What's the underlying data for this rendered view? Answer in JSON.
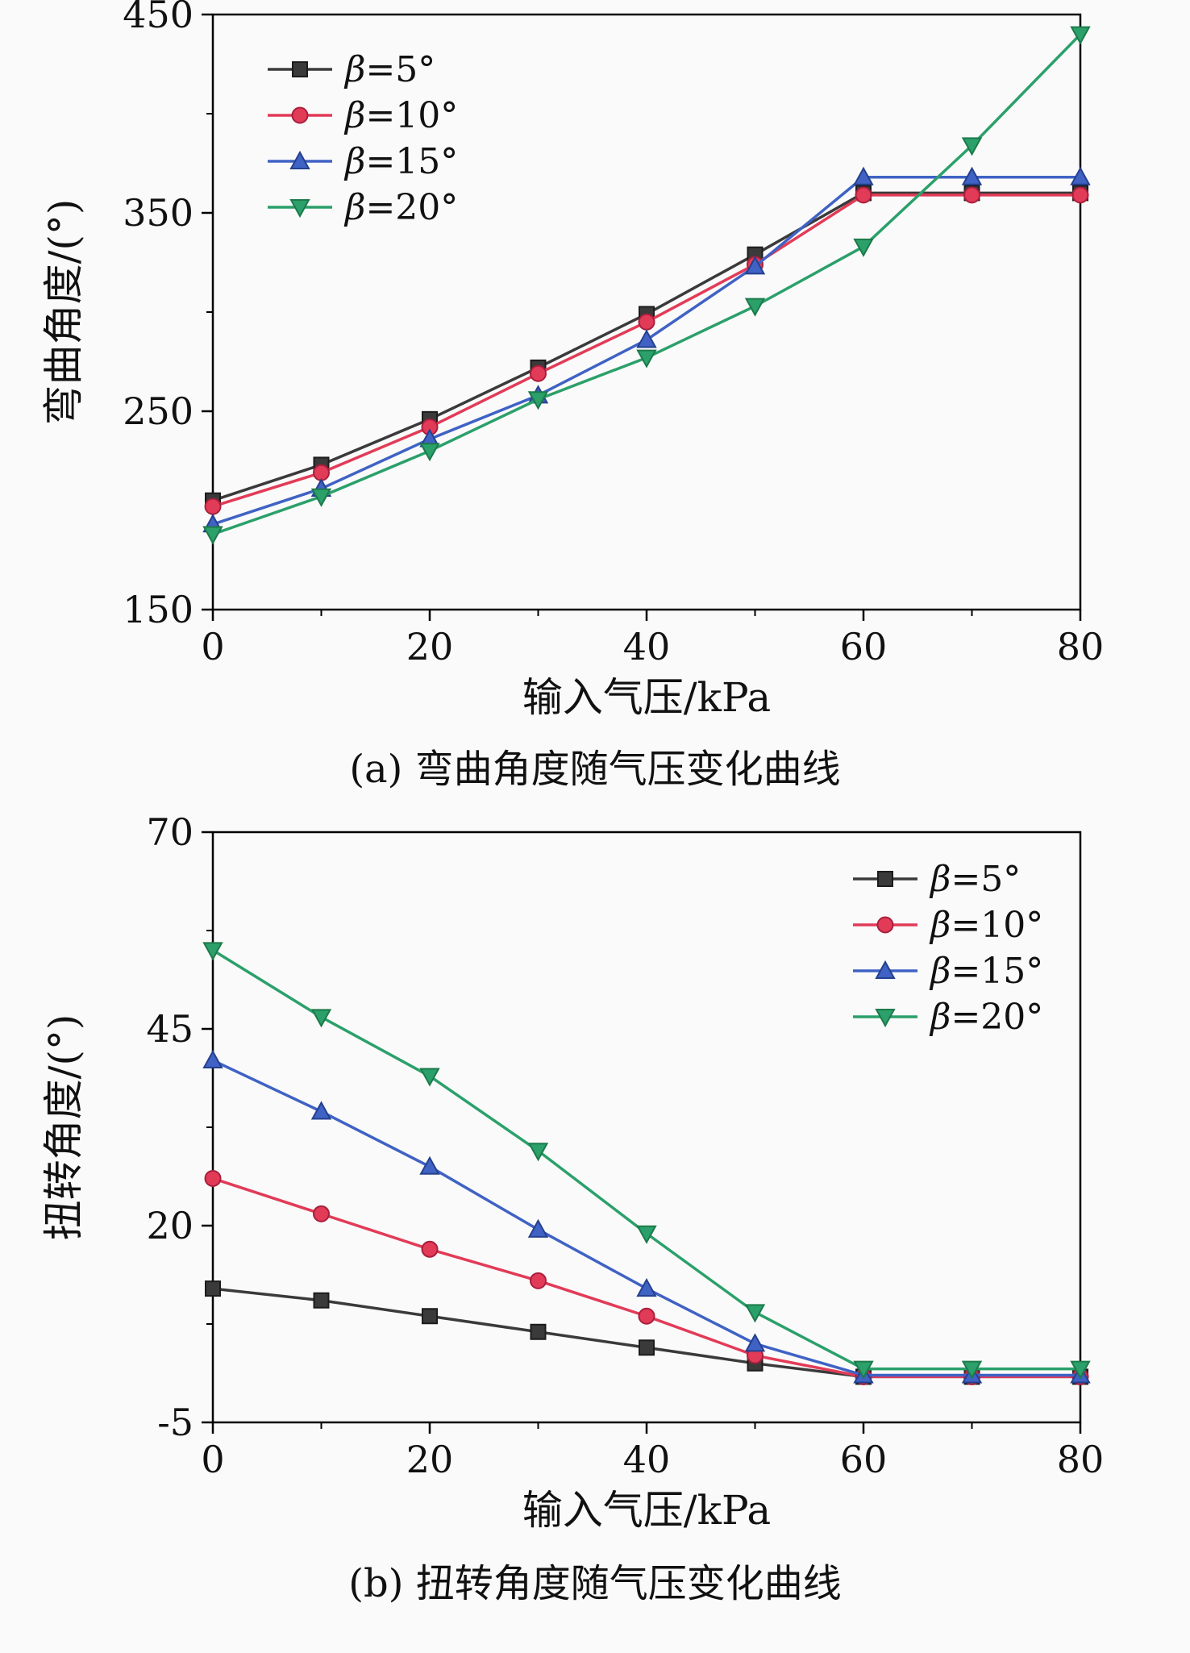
{
  "colors": {
    "frame": "#000000",
    "background": "#fafafa",
    "text": "#111111"
  },
  "chart_data": [
    {
      "type": "line",
      "caption": "(a) 弯曲角度随气压变化曲线",
      "xlabel": "输入气压/kPa",
      "ylabel": "弯曲角度/(°)",
      "xlim": [
        0,
        80
      ],
      "ylim": [
        150,
        450
      ],
      "x_ticks": [
        0,
        20,
        40,
        60,
        80
      ],
      "x_minor_ticks": [
        10,
        30,
        50,
        70
      ],
      "y_ticks": [
        150,
        250,
        350,
        450
      ],
      "y_minor_ticks": [
        200,
        300,
        400
      ],
      "legend_position": "top-left",
      "x": [
        0,
        10,
        20,
        30,
        40,
        50,
        60,
        70,
        80
      ],
      "series": [
        {
          "name": "β=5°",
          "beta": "β",
          "rest": "=5°",
          "color": "#3a3a3a",
          "edge": "#1c1c1c",
          "marker": "square",
          "values": [
            205,
            223,
            246,
            272,
            299,
            329,
            360,
            360,
            360
          ]
        },
        {
          "name": "β=10°",
          "beta": "β",
          "rest": "=10°",
          "color": "#e23b57",
          "edge": "#a81f3d",
          "marker": "circle",
          "values": [
            202,
            219,
            242,
            269,
            295,
            324,
            359,
            359,
            359
          ]
        },
        {
          "name": "β=15°",
          "beta": "β",
          "rest": "=15°",
          "color": "#3f62c4",
          "edge": "#24408e",
          "marker": "triangle-up",
          "values": [
            193,
            211,
            236,
            258,
            286,
            323,
            368,
            368,
            368
          ]
        },
        {
          "name": "β=20°",
          "beta": "β",
          "rest": "=20°",
          "color": "#2ba06a",
          "edge": "#1c7a4a",
          "marker": "triangle-down",
          "values": [
            188,
            207,
            230,
            256,
            277,
            303,
            333,
            384,
            440
          ]
        }
      ]
    },
    {
      "type": "line",
      "caption": "(b) 扭转角度随气压变化曲线",
      "xlabel": "输入气压/kPa",
      "ylabel": "扭转角度/(°)",
      "xlim": [
        0,
        80
      ],
      "ylim": [
        -5,
        70
      ],
      "x_ticks": [
        0,
        20,
        40,
        60,
        80
      ],
      "x_minor_ticks": [
        10,
        30,
        50,
        70
      ],
      "y_ticks": [
        -5,
        20,
        45,
        70
      ],
      "y_minor_ticks": [
        7.5,
        32.5,
        57.5
      ],
      "legend_position": "top-right",
      "x": [
        0,
        10,
        20,
        30,
        40,
        50,
        60,
        70,
        80
      ],
      "series": [
        {
          "name": "β=5°",
          "beta": "β",
          "rest": "=5°",
          "color": "#3a3a3a",
          "edge": "#1c1c1c",
          "marker": "square",
          "values": [
            12,
            10.5,
            8.5,
            6.5,
            4.5,
            2.5,
            0.8,
            0.8,
            0.8
          ]
        },
        {
          "name": "β=10°",
          "beta": "β",
          "rest": "=10°",
          "color": "#e23b57",
          "edge": "#a81f3d",
          "marker": "circle",
          "values": [
            26,
            21.5,
            17,
            13,
            8.5,
            3.5,
            0.8,
            0.8,
            0.8
          ]
        },
        {
          "name": "β=15°",
          "beta": "β",
          "rest": "=15°",
          "color": "#3f62c4",
          "edge": "#24408e",
          "marker": "triangle-up",
          "values": [
            41,
            34.5,
            27.5,
            19.5,
            12,
            5,
            1,
            1,
            1
          ]
        },
        {
          "name": "β=20°",
          "beta": "β",
          "rest": "=20°",
          "color": "#2ba06a",
          "edge": "#1c7a4a",
          "marker": "triangle-down",
          "values": [
            55,
            46.5,
            39,
            29.5,
            19,
            9,
            1.8,
            1.8,
            1.8
          ]
        }
      ]
    }
  ]
}
